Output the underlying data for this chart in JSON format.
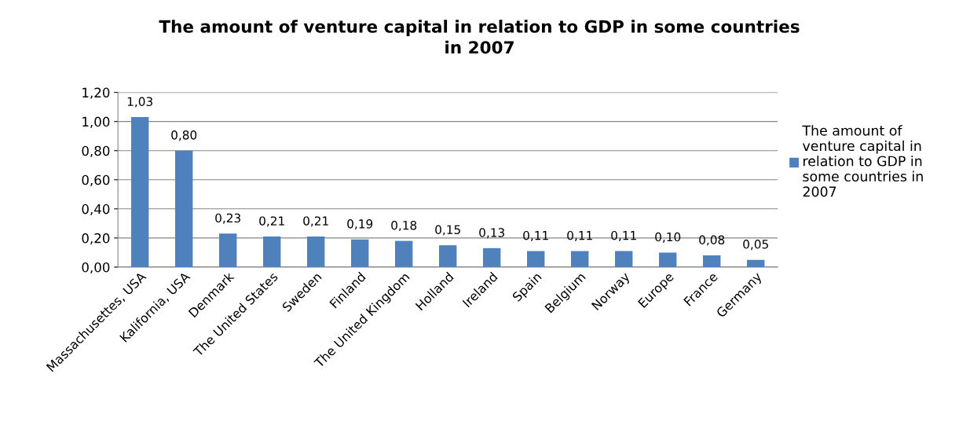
{
  "chart_data": {
    "type": "bar",
    "title": "The amount of venture capital in relation to GDP in some countries in 2007",
    "categories": [
      "Massachusettes, USA",
      "Kalifornia, USA",
      "Denmark",
      "The United States",
      "Sweden",
      "Finland",
      "The United Kingdom",
      "Holland",
      "Ireland",
      "Spain",
      "Belgium",
      "Norway",
      "Europe",
      "France",
      "Germany"
    ],
    "series": [
      {
        "name": "The amount of venture capital in relation to GDP in some countries in 2007",
        "color": "#4f81bd",
        "values": [
          1.03,
          0.8,
          0.23,
          0.21,
          0.21,
          0.19,
          0.18,
          0.15,
          0.13,
          0.11,
          0.11,
          0.11,
          0.1,
          0.08,
          0.05
        ],
        "value_labels": [
          "1,03",
          "0,80",
          "0,23",
          "0,21",
          "0,21",
          "0,19",
          "0,18",
          "0,15",
          "0,13",
          "0,11",
          "0,11",
          "0,11",
          "0,10",
          "0,08",
          "0,05"
        ]
      }
    ],
    "ylim": [
      0,
      1.2
    ],
    "yticks": [
      {
        "value": 0,
        "label": "0,00"
      },
      {
        "value": 0.2,
        "label": "0,20"
      },
      {
        "value": 0.4,
        "label": "0,40"
      },
      {
        "value": 0.6,
        "label": "0,60"
      },
      {
        "value": 0.8,
        "label": "0,80"
      },
      {
        "value": 1.0,
        "label": "1,00"
      },
      {
        "value": 1.2,
        "label": "1,20"
      }
    ],
    "grid": "y",
    "legend": "right"
  }
}
